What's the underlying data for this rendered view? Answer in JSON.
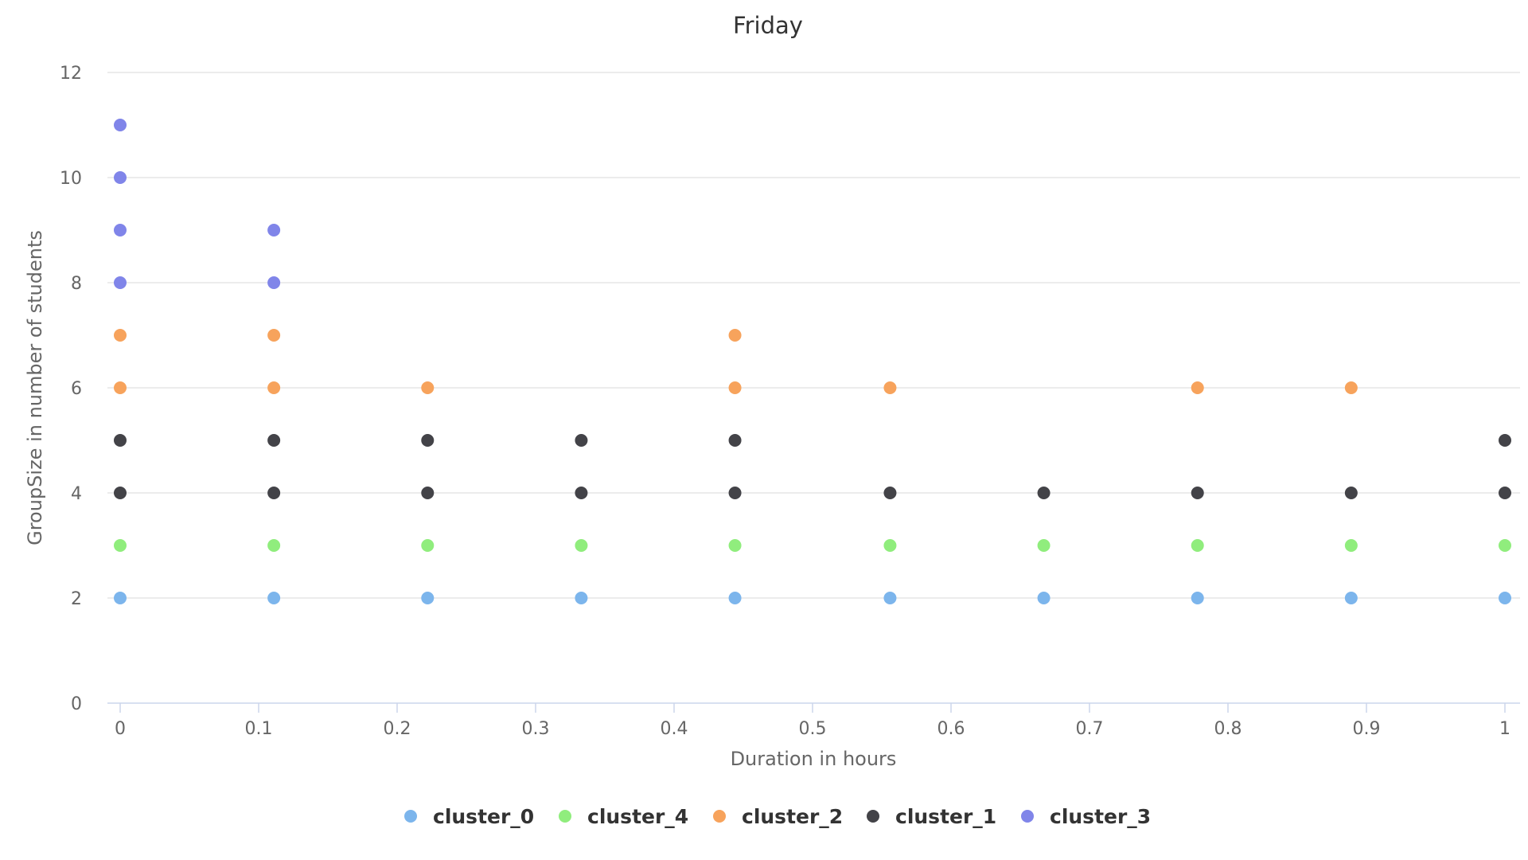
{
  "chart_data": {
    "type": "scatter",
    "title": "Friday",
    "xlabel": "Duration in hours",
    "ylabel": "GroupSize in number of students",
    "xlim": [
      0,
      1
    ],
    "ylim": [
      0,
      12
    ],
    "x_ticks": [
      0,
      0.1,
      0.2,
      0.3,
      0.4,
      0.5,
      0.6,
      0.7,
      0.8,
      0.9,
      1
    ],
    "y_ticks": [
      0,
      2,
      4,
      6,
      8,
      10,
      12
    ],
    "grid": "horizontal",
    "legend": "bottom-center",
    "series": [
      {
        "name": "cluster_0",
        "color": "#7cb5ec",
        "points": [
          [
            0,
            2
          ],
          [
            0.111,
            2
          ],
          [
            0.222,
            2
          ],
          [
            0.333,
            2
          ],
          [
            0.444,
            2
          ],
          [
            0.556,
            2
          ],
          [
            0.667,
            2
          ],
          [
            0.778,
            2
          ],
          [
            0.889,
            2
          ],
          [
            1,
            2
          ]
        ]
      },
      {
        "name": "cluster_4",
        "color": "#90ed7d",
        "points": [
          [
            0,
            3
          ],
          [
            0.111,
            3
          ],
          [
            0.222,
            3
          ],
          [
            0.333,
            3
          ],
          [
            0.444,
            3
          ],
          [
            0.556,
            3
          ],
          [
            0.667,
            3
          ],
          [
            0.778,
            3
          ],
          [
            0.889,
            3
          ],
          [
            1,
            3
          ]
        ]
      },
      {
        "name": "cluster_2",
        "color": "#f7a35c",
        "points": [
          [
            0,
            6
          ],
          [
            0,
            7
          ],
          [
            0.111,
            6
          ],
          [
            0.111,
            7
          ],
          [
            0.222,
            6
          ],
          [
            0.444,
            6
          ],
          [
            0.444,
            7
          ],
          [
            0.556,
            6
          ],
          [
            0.778,
            6
          ],
          [
            0.889,
            6
          ]
        ]
      },
      {
        "name": "cluster_1",
        "color": "#434348",
        "points": [
          [
            0,
            4
          ],
          [
            0,
            5
          ],
          [
            0.111,
            4
          ],
          [
            0.111,
            5
          ],
          [
            0.222,
            4
          ],
          [
            0.222,
            5
          ],
          [
            0.333,
            4
          ],
          [
            0.333,
            5
          ],
          [
            0.444,
            4
          ],
          [
            0.444,
            5
          ],
          [
            0.556,
            4
          ],
          [
            0.667,
            4
          ],
          [
            0.778,
            4
          ],
          [
            0.889,
            4
          ],
          [
            1,
            4
          ],
          [
            1,
            5
          ]
        ]
      },
      {
        "name": "cluster_3",
        "color": "#8085e9",
        "points": [
          [
            0,
            8
          ],
          [
            0,
            9
          ],
          [
            0,
            10
          ],
          [
            0,
            11
          ],
          [
            0.111,
            8
          ],
          [
            0.111,
            9
          ]
        ]
      }
    ]
  }
}
